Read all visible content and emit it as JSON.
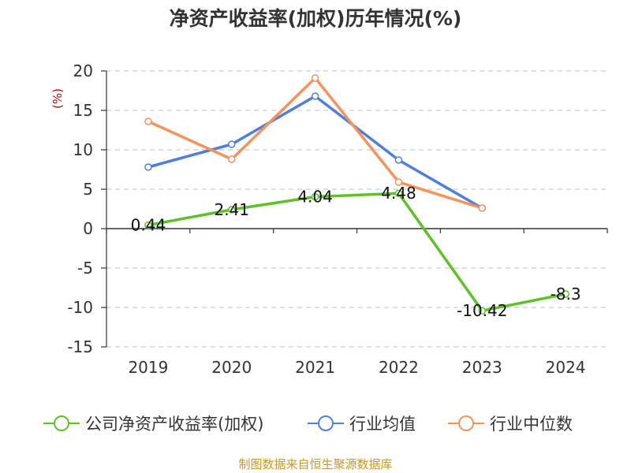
{
  "chart_data": {
    "type": "line",
    "title": "净资产收益率(加权)历年情况(%)",
    "ylabel": "(%)",
    "xlabel": "",
    "categories": [
      "2019",
      "2020",
      "2021",
      "2022",
      "2023",
      "2024"
    ],
    "ylim": [
      -15,
      20
    ],
    "yticks": [
      20,
      15,
      10,
      5,
      0,
      -5,
      -10,
      -15
    ],
    "grid": true,
    "legend_position": "bottom",
    "series": [
      {
        "name": "公司净资产收益率(加权)",
        "color": "#5ec227",
        "values": [
          0.44,
          2.41,
          4.04,
          4.48,
          -10.42,
          -8.3
        ],
        "labels": [
          "0.44",
          "2.41",
          "4.04",
          "4.48",
          "-10.42",
          "-8.3"
        ]
      },
      {
        "name": "行业均值",
        "color": "#4f7fdc",
        "values": [
          7.8,
          10.7,
          16.8,
          8.7,
          2.6,
          null
        ]
      },
      {
        "name": "行业中位数",
        "color": "#f7925a",
        "values": [
          13.6,
          8.8,
          19.1,
          5.9,
          2.6,
          null
        ]
      }
    ]
  },
  "source": {
    "text": "制图数据来自恒生聚源数据库",
    "color": "#c8962a"
  },
  "colors": {
    "axis": "#333333",
    "grid": "#cccccc",
    "ylabel": "#cc0000"
  }
}
